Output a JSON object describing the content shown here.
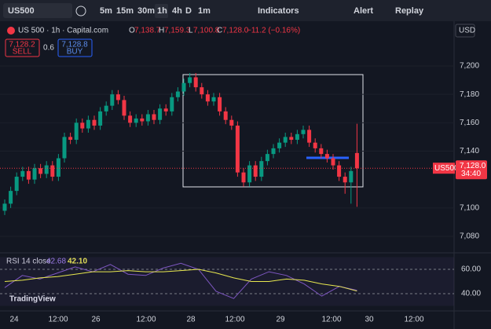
{
  "toolbar": {
    "symbol": "US500",
    "intervals": [
      "5m",
      "15m",
      "30m",
      "1h",
      "4h",
      "D",
      "1m"
    ],
    "indicators": "Indicators",
    "alert": "Alert",
    "replay": "Replay"
  },
  "legend": {
    "title": "US 500 · 1h · Capital.com",
    "open_label": "O",
    "open": "7,138.7",
    "high_label": "H",
    "high": "7,159.3",
    "low_label": "L",
    "low": "7,100.8",
    "close_label": "C",
    "close": "7,128.0",
    "change": "−11.2 (−0.16%)"
  },
  "trade": {
    "sell_price": "7,128.2",
    "sell": "SELL",
    "spread": "0.6",
    "buy_price": "7,128.8",
    "buy": "BUY"
  },
  "currency": "USD",
  "last_price": {
    "symbol": "US500",
    "price": "7,128.0",
    "countdown": "34:40"
  },
  "chart_data": {
    "type": "candlestick",
    "candles": [
      [
        7098,
        7106,
        7095,
        7103
      ],
      [
        7103,
        7115,
        7100,
        7112
      ],
      [
        7112,
        7125,
        7109,
        7122
      ],
      [
        7122,
        7129,
        7119,
        7126
      ],
      [
        7126,
        7129,
        7117,
        7120
      ],
      [
        7120,
        7131,
        7117,
        7128
      ],
      [
        7128,
        7131,
        7121,
        7124
      ],
      [
        7124,
        7133,
        7121,
        7130
      ],
      [
        7130,
        7133,
        7119,
        7122
      ],
      [
        7122,
        7138,
        7119,
        7135
      ],
      [
        7135,
        7153,
        7132,
        7150
      ],
      [
        7150,
        7153,
        7145,
        7148
      ],
      [
        7148,
        7163,
        7145,
        7160
      ],
      [
        7160,
        7163,
        7153,
        7156
      ],
      [
        7156,
        7165,
        7153,
        7162
      ],
      [
        7162,
        7165,
        7155,
        7158
      ],
      [
        7158,
        7171,
        7155,
        7168
      ],
      [
        7168,
        7175,
        7165,
        7172
      ],
      [
        7172,
        7183,
        7169,
        7180
      ],
      [
        7180,
        7183,
        7173,
        7176
      ],
      [
        7176,
        7179,
        7162,
        7165
      ],
      [
        7165,
        7168,
        7157,
        7160
      ],
      [
        7160,
        7166,
        7157,
        7163
      ],
      [
        7163,
        7166,
        7158,
        7161
      ],
      [
        7161,
        7169,
        7158,
        7166
      ],
      [
        7166,
        7169,
        7159,
        7162
      ],
      [
        7162,
        7173,
        7159,
        7170
      ],
      [
        7170,
        7173,
        7165,
        7168
      ],
      [
        7168,
        7181,
        7165,
        7178
      ],
      [
        7178,
        7185,
        7175,
        7182
      ],
      [
        7182,
        7191,
        7179,
        7188
      ],
      [
        7188,
        7195,
        7185,
        7192
      ],
      [
        7192,
        7195,
        7182,
        7185
      ],
      [
        7185,
        7188,
        7177,
        7180
      ],
      [
        7180,
        7183,
        7172,
        7175
      ],
      [
        7175,
        7181,
        7172,
        7178
      ],
      [
        7178,
        7181,
        7165,
        7168
      ],
      [
        7168,
        7171,
        7159,
        7162
      ],
      [
        7162,
        7165,
        7155,
        7158
      ],
      [
        7158,
        7161,
        7122,
        7125
      ],
      [
        7125,
        7128,
        7115,
        7118
      ],
      [
        7118,
        7133,
        7115,
        7130
      ],
      [
        7130,
        7133,
        7119,
        7122
      ],
      [
        7122,
        7136,
        7119,
        7133
      ],
      [
        7133,
        7141,
        7130,
        7138
      ],
      [
        7138,
        7145,
        7135,
        7142
      ],
      [
        7142,
        7149,
        7139,
        7146
      ],
      [
        7146,
        7153,
        7143,
        7150
      ],
      [
        7150,
        7153,
        7145,
        7148
      ],
      [
        7148,
        7155,
        7145,
        7152
      ],
      [
        7152,
        7158,
        7149,
        7155
      ],
      [
        7155,
        7158,
        7143,
        7146
      ],
      [
        7146,
        7149,
        7139,
        7142
      ],
      [
        7142,
        7145,
        7135,
        7138
      ],
      [
        7138,
        7141,
        7132,
        7135
      ],
      [
        7135,
        7138,
        7127,
        7130
      ],
      [
        7130,
        7133,
        7119,
        7122
      ],
      [
        7122,
        7125,
        7110,
        7118
      ],
      [
        7118,
        7129,
        7103,
        7126
      ],
      [
        7138.7,
        7159.3,
        7100.8,
        7128
      ]
    ],
    "yticks": [
      {
        "value": 7200,
        "label": "7,200"
      },
      {
        "value": 7180,
        "label": "7,180"
      },
      {
        "value": 7160,
        "label": "7,160"
      },
      {
        "value": 7140,
        "label": "7,140"
      },
      {
        "value": 7100,
        "label": "7,100"
      },
      {
        "value": 7080,
        "label": "7,080"
      }
    ],
    "x_labels": [
      "24",
      "12:00",
      "26",
      "12:00",
      "28",
      "12:00",
      "29",
      "12:00",
      "30",
      "12:00"
    ]
  },
  "rsi": {
    "label": "RSI 14 close",
    "value": "42.68",
    "ma_value": "42.10",
    "values": [
      45,
      55,
      52,
      57,
      62,
      58,
      64,
      56,
      55,
      61,
      65,
      60,
      42,
      36,
      52,
      58,
      55,
      48,
      38,
      46,
      42.68
    ],
    "ma": [
      50,
      51,
      53,
      54,
      56,
      58,
      58,
      59,
      58,
      58,
      59,
      60,
      57,
      53,
      50,
      50,
      52,
      51,
      48,
      46,
      42.1
    ],
    "yticks": [
      {
        "value": 60,
        "label": "60.00"
      },
      {
        "value": 40,
        "label": "40.00"
      }
    ]
  },
  "watermark": "TradingView"
}
